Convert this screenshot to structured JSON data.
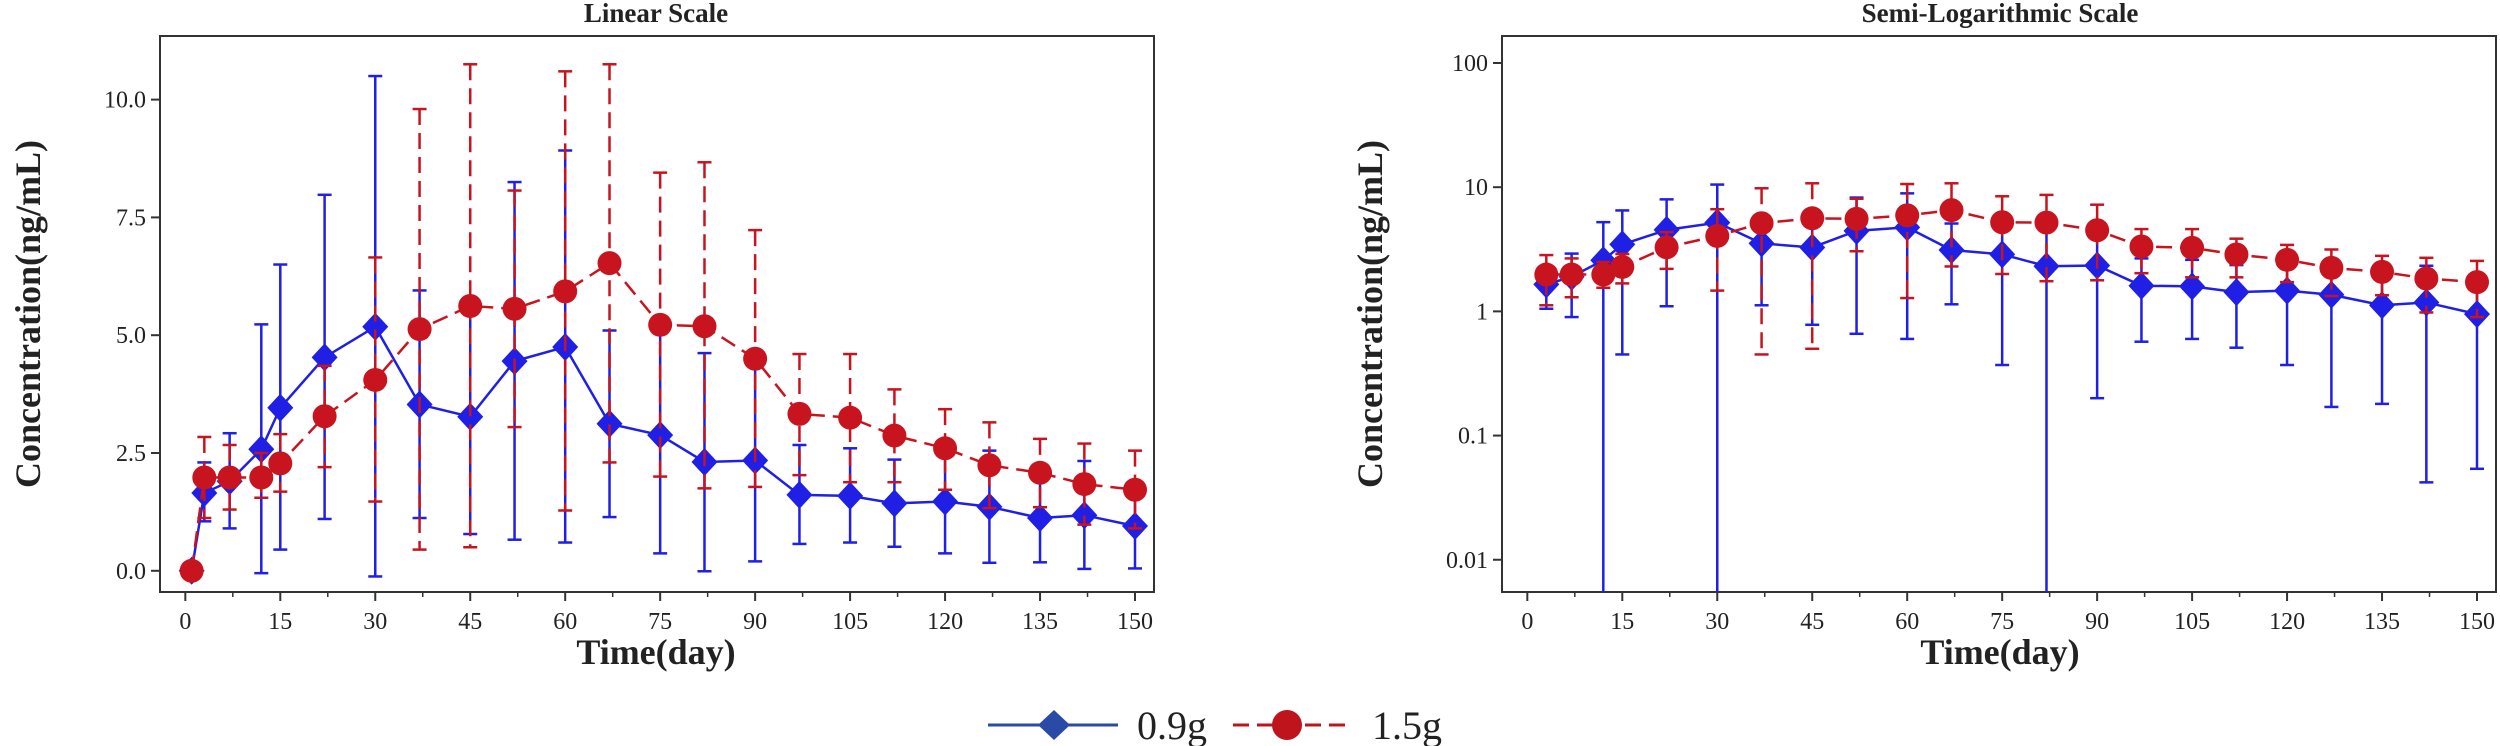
{
  "legend": {
    "items": [
      {
        "label": "0.9g",
        "color": "#2a4aa8",
        "marker": "diamond",
        "line": "solid"
      },
      {
        "label": "1.5g",
        "color": "#c0141c",
        "marker": "circle",
        "line": "dashed"
      }
    ]
  },
  "colors": {
    "blue": "#1f1fe6",
    "red": "#c8141e",
    "legend_blue": "#2a4aa8",
    "legend_red": "#c0141c"
  },
  "chart_data": [
    {
      "type": "line",
      "title": "Linear Scale",
      "xlabel": "Time(day)",
      "ylabel": "Concentration(ng/mL)",
      "yscale": "linear",
      "xlim": [
        -4,
        153
      ],
      "ylim": [
        -0.45,
        11.35
      ],
      "xticks": [
        "0",
        "15",
        "30",
        "45",
        "60",
        "75",
        "90",
        "105",
        "120",
        "135",
        "150"
      ],
      "yticks": [
        "0.0",
        "2.5",
        "5.0",
        "7.5",
        "10.0"
      ],
      "series": [
        {
          "name": "0.9g",
          "x": [
            1,
            3,
            7,
            12,
            15,
            22,
            30,
            37,
            45,
            52,
            60,
            67,
            75,
            82,
            90,
            97,
            105,
            112,
            120,
            127,
            135,
            142,
            150
          ],
          "y": [
            0,
            1.65,
            1.9,
            2.58,
            3.46,
            4.53,
            5.18,
            3.53,
            3.27,
            4.45,
            4.75,
            3.12,
            2.88,
            2.31,
            2.34,
            1.61,
            1.59,
            1.43,
            1.47,
            1.36,
            1.12,
            1.18,
            0.95
          ],
          "lower": [
            0,
            1.05,
            0.9,
            -0.05,
            0.45,
            1.1,
            -0.12,
            1.12,
            0.78,
            0.66,
            0.6,
            1.14,
            0.37,
            -0.01,
            0.2,
            0.57,
            0.6,
            0.51,
            0.37,
            0.17,
            0.18,
            0.04,
            0.05
          ],
          "upper": [
            0,
            2.3,
            2.92,
            5.23,
            6.5,
            7.98,
            10.5,
            5.95,
            5.75,
            8.25,
            8.92,
            5.1,
            5.38,
            4.62,
            4.48,
            2.67,
            2.6,
            2.36,
            2.58,
            2.55,
            2.05,
            2.33,
            1.82
          ]
        },
        {
          "name": "1.5g",
          "x": [
            1,
            3,
            7,
            12,
            15,
            22,
            30,
            37,
            45,
            52,
            60,
            67,
            75,
            82,
            90,
            97,
            105,
            112,
            120,
            127,
            135,
            142,
            150
          ],
          "y": [
            0,
            1.98,
            1.98,
            1.98,
            2.28,
            3.28,
            4.05,
            5.13,
            5.62,
            5.56,
            5.93,
            6.53,
            5.22,
            5.19,
            4.5,
            3.33,
            3.25,
            2.87,
            2.6,
            2.24,
            2.08,
            1.84,
            1.72
          ],
          "lower": [
            0,
            1.12,
            1.3,
            1.55,
            1.68,
            2.2,
            1.47,
            0.45,
            0.5,
            3.05,
            1.28,
            2.3,
            2.0,
            1.75,
            1.78,
            2.03,
            1.88,
            1.88,
            1.72,
            1.33,
            1.35,
            0.98,
            0.9
          ],
          "upper": [
            0,
            2.84,
            2.67,
            2.5,
            2.9,
            4.35,
            6.65,
            9.8,
            10.75,
            8.07,
            10.6,
            10.75,
            8.45,
            8.67,
            7.23,
            4.6,
            4.6,
            3.85,
            3.43,
            3.15,
            2.8,
            2.7,
            2.55
          ]
        }
      ]
    },
    {
      "type": "line",
      "title": "Semi-Logarithmic Scale",
      "xlabel": "Time(day)",
      "ylabel": "Concentration(ng/mL)",
      "yscale": "log",
      "xlim": [
        -4,
        153
      ],
      "ylim": [
        0.0055,
        165
      ],
      "xticks": [
        "0",
        "15",
        "30",
        "45",
        "60",
        "75",
        "90",
        "105",
        "120",
        "135",
        "150"
      ],
      "yticks": [
        "0.01",
        "0.1",
        "1",
        "10",
        "100"
      ],
      "series": [
        {
          "name": "0.9g",
          "x": [
            3,
            7,
            12,
            15,
            22,
            30,
            37,
            45,
            52,
            60,
            67,
            75,
            82,
            90,
            97,
            105,
            112,
            120,
            127,
            135,
            142,
            150
          ],
          "y": [
            1.65,
            1.9,
            2.58,
            3.46,
            4.53,
            5.18,
            3.53,
            3.27,
            4.45,
            4.75,
            3.12,
            2.88,
            2.31,
            2.34,
            1.61,
            1.59,
            1.43,
            1.47,
            1.36,
            1.12,
            1.18,
            0.95
          ],
          "lower": [
            1.05,
            0.9,
            0,
            0.45,
            1.1,
            0,
            1.12,
            0.78,
            0.66,
            0.6,
            1.14,
            0.37,
            0,
            0.2,
            0.57,
            0.6,
            0.51,
            0.37,
            0.17,
            0.18,
            0.042,
            0.054
          ],
          "upper": [
            2.3,
            2.92,
            5.23,
            6.5,
            7.98,
            10.5,
            5.95,
            5.75,
            8.25,
            8.92,
            5.1,
            5.38,
            4.62,
            4.48,
            2.67,
            2.6,
            2.36,
            2.58,
            2.55,
            2.05,
            2.33,
            1.82
          ]
        },
        {
          "name": "1.5g",
          "x": [
            3,
            7,
            12,
            15,
            22,
            30,
            37,
            45,
            52,
            60,
            67,
            75,
            82,
            90,
            97,
            105,
            112,
            120,
            127,
            135,
            142,
            150
          ],
          "y": [
            1.98,
            1.98,
            1.98,
            2.28,
            3.28,
            4.05,
            5.13,
            5.62,
            5.56,
            5.93,
            6.53,
            5.22,
            5.19,
            4.5,
            3.33,
            3.25,
            2.87,
            2.6,
            2.24,
            2.08,
            1.84,
            1.72
          ],
          "lower": [
            1.12,
            1.3,
            1.55,
            1.68,
            2.2,
            1.47,
            0.45,
            0.5,
            3.05,
            1.28,
            2.3,
            2.0,
            1.75,
            1.78,
            2.03,
            1.88,
            1.88,
            1.72,
            1.33,
            1.35,
            0.98,
            0.9
          ],
          "upper": [
            2.84,
            2.67,
            2.5,
            2.9,
            4.35,
            6.65,
            9.8,
            10.75,
            8.07,
            10.6,
            10.75,
            8.45,
            8.67,
            7.23,
            4.6,
            4.6,
            3.85,
            3.43,
            3.15,
            2.8,
            2.7,
            2.55
          ]
        }
      ]
    }
  ]
}
